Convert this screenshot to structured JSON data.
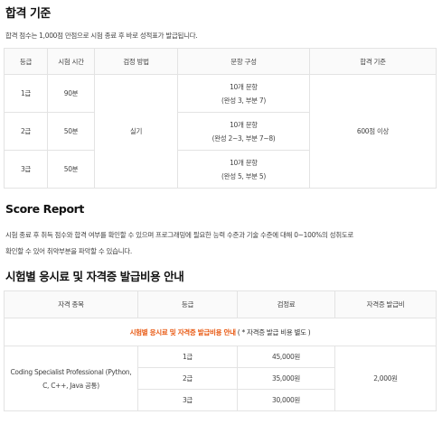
{
  "section1": {
    "title": "합격 기준",
    "desc": "합격 점수는 1,000점 만점으로 시험 종료 후 바로 성적표가 발급됩니다.",
    "headers": [
      "등급",
      "시험 시간",
      "검정 방법",
      "문항 구성",
      "합격 기준"
    ],
    "method": "실기",
    "pass": "600점 이상",
    "rows": [
      {
        "grade": "1급",
        "time": "90분",
        "count": "10개 문항",
        "detail": "(완성 3, 부분 7)"
      },
      {
        "grade": "2급",
        "time": "50분",
        "count": "10개 문항",
        "detail": "(완성 2~3, 부분 7~8)"
      },
      {
        "grade": "3급",
        "time": "50분",
        "count": "10개 문항",
        "detail": "(완성 5, 부분 5)"
      }
    ]
  },
  "section2": {
    "title": "Score Report",
    "line1": "시험 종료 후 취득 점수와 합격 여부를 확인할 수 있으며 프로그래밍에 필요한 능력 수준과 기술 수준에 대해 0~100%의 성취도로",
    "line2": "확인할 수 있어 취약부분을 파악할 수 있습니다."
  },
  "section3": {
    "title": "시험별 응시료 및 자격증 발급비용 안내",
    "notice_highlight": "시험별 응시료 및 자격증 발급비용 안내",
    "notice_rest": " ( * 자격증 발급 비용 별도 )",
    "headers": [
      "자격 종목",
      "등급",
      "검정료",
      "자격증 발급비"
    ],
    "subject": "Coding Specialist Professional (Python, C, C++, Java 공통)",
    "issue_fee": "2,000원",
    "rows": [
      {
        "grade": "1급",
        "fee": "45,000원"
      },
      {
        "grade": "2급",
        "fee": "35,000원"
      },
      {
        "grade": "3급",
        "fee": "30,000원"
      }
    ]
  }
}
